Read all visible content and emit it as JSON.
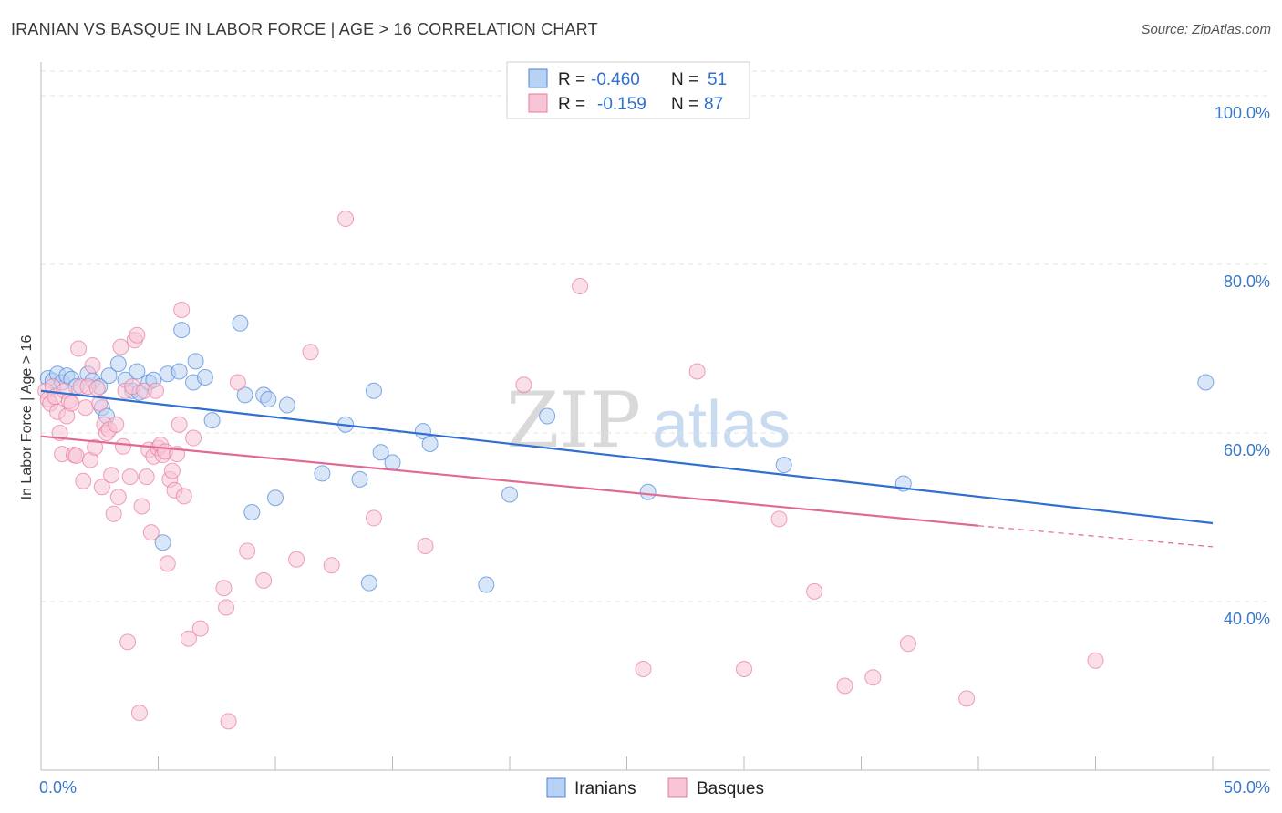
{
  "title": "IRANIAN VS BASQUE IN LABOR FORCE | AGE > 16 CORRELATION CHART",
  "source": "Source: ZipAtlas.com",
  "watermark": {
    "zip": "ZIP",
    "atlas": "atlas"
  },
  "chart_data": {
    "type": "scatter",
    "ylabel": "In Labor Force | Age > 16",
    "xlabel": "",
    "xlim": [
      0,
      50
    ],
    "ylim": [
      20,
      104
    ],
    "x_tick_labels": [
      "0.0%",
      "50.0%"
    ],
    "y_ticks": [
      40,
      60,
      80,
      100
    ],
    "y_tick_labels": [
      "40.0%",
      "60.0%",
      "80.0%",
      "100.0%"
    ],
    "legend": [
      {
        "series": "Iranians",
        "r_label": "R =",
        "r_value": "-0.460",
        "n_label": "N =",
        "n_value": "51",
        "color": "#4a86d8",
        "fill": "#b9d2f3"
      },
      {
        "series": "Basques",
        "r_label": "R =",
        "r_value": "-0.159",
        "n_label": "N =",
        "n_value": "87",
        "color": "#e8799c",
        "fill": "#f7c5d5"
      }
    ],
    "series": [
      {
        "name": "Iranians",
        "color": "#4a86d8",
        "fill": "#b9d2f3",
        "trend": {
          "x0": 0,
          "y0": 65.0,
          "x1": 50,
          "y1": 49.3
        },
        "points": [
          [
            0.3,
            66.5
          ],
          [
            0.5,
            66.2
          ],
          [
            0.7,
            67.0
          ],
          [
            0.9,
            66.0
          ],
          [
            1.1,
            66.8
          ],
          [
            1.3,
            66.4
          ],
          [
            1.5,
            65.5
          ],
          [
            2.0,
            67.0
          ],
          [
            2.2,
            66.2
          ],
          [
            2.5,
            65.5
          ],
          [
            2.6,
            63.0
          ],
          [
            2.8,
            62.0
          ],
          [
            2.9,
            66.8
          ],
          [
            3.3,
            68.2
          ],
          [
            3.6,
            66.3
          ],
          [
            3.9,
            65.0
          ],
          [
            4.1,
            67.3
          ],
          [
            4.2,
            64.8
          ],
          [
            4.6,
            66.0
          ],
          [
            4.8,
            66.3
          ],
          [
            5.2,
            47.0
          ],
          [
            5.4,
            67.0
          ],
          [
            5.9,
            67.3
          ],
          [
            6.0,
            72.2
          ],
          [
            6.5,
            66.0
          ],
          [
            6.6,
            68.5
          ],
          [
            7.0,
            66.6
          ],
          [
            7.3,
            61.5
          ],
          [
            8.5,
            73.0
          ],
          [
            8.7,
            64.5
          ],
          [
            9.0,
            50.6
          ],
          [
            9.5,
            64.5
          ],
          [
            9.7,
            64.0
          ],
          [
            10.0,
            52.3
          ],
          [
            10.5,
            63.3
          ],
          [
            12.0,
            55.2
          ],
          [
            13.0,
            61.0
          ],
          [
            13.6,
            54.5
          ],
          [
            14.0,
            42.2
          ],
          [
            14.2,
            65.0
          ],
          [
            14.5,
            57.7
          ],
          [
            15.0,
            56.5
          ],
          [
            16.3,
            60.2
          ],
          [
            16.6,
            58.7
          ],
          [
            19.0,
            42.0
          ],
          [
            20.0,
            52.7
          ],
          [
            21.6,
            62.0
          ],
          [
            25.9,
            53.0
          ],
          [
            31.7,
            56.2
          ],
          [
            36.8,
            54.0
          ],
          [
            49.7,
            66.0
          ]
        ]
      },
      {
        "name": "Basques",
        "color": "#e8799c",
        "fill": "#f7c5d5",
        "trend": {
          "x0": 0,
          "y0": 59.6,
          "x1": 40,
          "y1": 49.0,
          "dash_x1": 50,
          "dash_y1": 46.5
        },
        "points": [
          [
            0.2,
            65.0
          ],
          [
            0.3,
            64.0
          ],
          [
            0.4,
            63.5
          ],
          [
            0.5,
            65.5
          ],
          [
            0.6,
            64.3
          ],
          [
            0.7,
            62.5
          ],
          [
            0.8,
            60.0
          ],
          [
            0.9,
            57.5
          ],
          [
            1.0,
            65.0
          ],
          [
            1.1,
            62.0
          ],
          [
            1.2,
            63.8
          ],
          [
            1.3,
            63.5
          ],
          [
            1.4,
            57.4
          ],
          [
            1.5,
            57.3
          ],
          [
            1.6,
            70.0
          ],
          [
            1.7,
            65.5
          ],
          [
            1.8,
            54.3
          ],
          [
            1.9,
            63.0
          ],
          [
            2.0,
            65.5
          ],
          [
            2.1,
            56.8
          ],
          [
            2.2,
            68.0
          ],
          [
            2.3,
            58.3
          ],
          [
            2.4,
            65.3
          ],
          [
            2.5,
            63.5
          ],
          [
            2.6,
            53.6
          ],
          [
            2.7,
            61.0
          ],
          [
            2.8,
            60.0
          ],
          [
            2.9,
            60.4
          ],
          [
            3.0,
            55.0
          ],
          [
            3.1,
            50.4
          ],
          [
            3.2,
            61.0
          ],
          [
            3.3,
            52.4
          ],
          [
            3.4,
            70.2
          ],
          [
            3.5,
            58.4
          ],
          [
            3.6,
            65.0
          ],
          [
            3.7,
            35.2
          ],
          [
            3.8,
            54.8
          ],
          [
            3.9,
            65.5
          ],
          [
            4.0,
            71.0
          ],
          [
            4.1,
            71.6
          ],
          [
            4.2,
            26.8
          ],
          [
            4.3,
            51.3
          ],
          [
            4.4,
            65.0
          ],
          [
            4.5,
            54.8
          ],
          [
            4.6,
            58.0
          ],
          [
            4.7,
            48.2
          ],
          [
            4.8,
            57.2
          ],
          [
            4.9,
            65.0
          ],
          [
            5.0,
            58.2
          ],
          [
            5.1,
            58.6
          ],
          [
            5.2,
            57.4
          ],
          [
            5.3,
            57.8
          ],
          [
            5.4,
            44.5
          ],
          [
            5.5,
            54.5
          ],
          [
            5.6,
            55.5
          ],
          [
            5.7,
            53.2
          ],
          [
            5.8,
            57.5
          ],
          [
            5.9,
            61.0
          ],
          [
            6.0,
            74.6
          ],
          [
            6.1,
            52.5
          ],
          [
            6.3,
            35.6
          ],
          [
            6.5,
            59.4
          ],
          [
            6.8,
            36.8
          ],
          [
            7.8,
            41.6
          ],
          [
            7.9,
            39.3
          ],
          [
            8.0,
            25.8
          ],
          [
            8.4,
            66.0
          ],
          [
            8.8,
            46.0
          ],
          [
            9.5,
            42.5
          ],
          [
            10.9,
            45.0
          ],
          [
            11.5,
            69.6
          ],
          [
            12.4,
            44.3
          ],
          [
            13.0,
            85.4
          ],
          [
            14.2,
            49.9
          ],
          [
            16.4,
            46.6
          ],
          [
            20.6,
            65.7
          ],
          [
            23.0,
            77.4
          ],
          [
            25.7,
            32.0
          ],
          [
            28.0,
            67.3
          ],
          [
            30.0,
            32.0
          ],
          [
            31.5,
            49.8
          ],
          [
            33.0,
            41.2
          ],
          [
            34.3,
            30.0
          ],
          [
            35.5,
            31.0
          ],
          [
            37.0,
            35.0
          ],
          [
            39.5,
            28.5
          ],
          [
            45.0,
            33.0
          ]
        ]
      }
    ]
  },
  "bottom_legend": [
    "Iranians",
    "Basques"
  ]
}
